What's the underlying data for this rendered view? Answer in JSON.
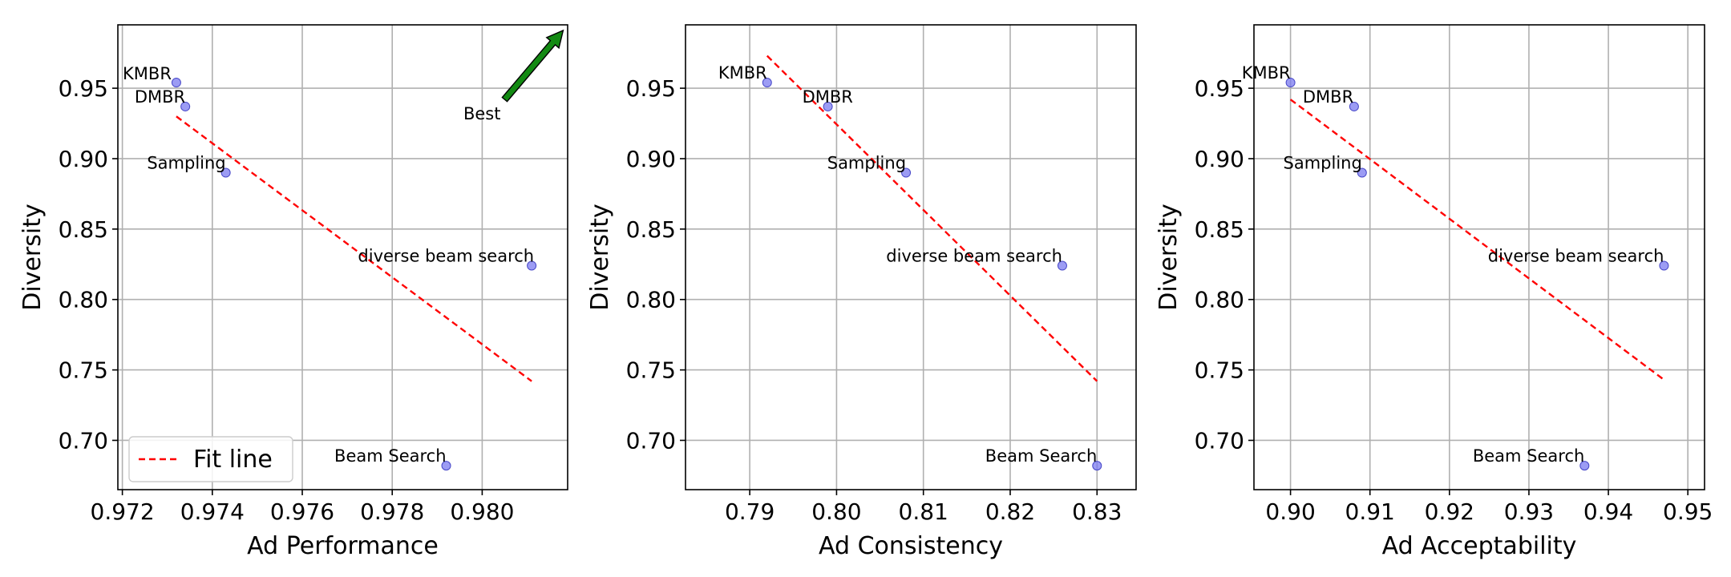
{
  "chart_data": [
    {
      "type": "scatter",
      "title": "",
      "xlabel": "Ad Performance",
      "ylabel": "Diversity",
      "xlim": [
        0.9719,
        0.9819
      ],
      "ylim": [
        0.665,
        0.995
      ],
      "xticks": [
        {
          "value": 0.972,
          "label": "0.972"
        },
        {
          "value": 0.974,
          "label": "0.974"
        },
        {
          "value": 0.976,
          "label": "0.976"
        },
        {
          "value": 0.978,
          "label": "0.978"
        },
        {
          "value": 0.98,
          "label": "0.980"
        }
      ],
      "yticks": [
        {
          "value": 0.7,
          "label": "0.70"
        },
        {
          "value": 0.75,
          "label": "0.75"
        },
        {
          "value": 0.8,
          "label": "0.80"
        },
        {
          "value": 0.85,
          "label": "0.85"
        },
        {
          "value": 0.9,
          "label": "0.90"
        },
        {
          "value": 0.95,
          "label": "0.95"
        }
      ],
      "grid": true,
      "points": [
        {
          "label": "KMBR",
          "x": 0.9732,
          "y": 0.954
        },
        {
          "label": "DMBR",
          "x": 0.9734,
          "y": 0.937
        },
        {
          "label": "Sampling",
          "x": 0.9743,
          "y": 0.89
        },
        {
          "label": "diverse beam search",
          "x": 0.9811,
          "y": 0.824
        },
        {
          "label": "Beam Search",
          "x": 0.9792,
          "y": 0.682
        }
      ],
      "fit_line": {
        "x": [
          0.9732,
          0.9811
        ],
        "y": [
          0.93,
          0.742
        ],
        "color": "#ff0000",
        "legend": "Fit line",
        "legend_position": "lower-left"
      },
      "annotation": {
        "text": "Best",
        "arrow_from": [
          0.9805,
          0.942
        ],
        "arrow_to": [
          0.9818,
          0.991
        ],
        "color": "#138a13"
      }
    },
    {
      "type": "scatter",
      "title": "",
      "xlabel": "Ad Consistency",
      "ylabel": "Diversity",
      "xlim": [
        0.7826,
        0.8345
      ],
      "ylim": [
        0.665,
        0.995
      ],
      "xticks": [
        {
          "value": 0.79,
          "label": "0.79"
        },
        {
          "value": 0.8,
          "label": "0.80"
        },
        {
          "value": 0.81,
          "label": "0.81"
        },
        {
          "value": 0.82,
          "label": "0.82"
        },
        {
          "value": 0.83,
          "label": "0.83"
        }
      ],
      "yticks": [
        {
          "value": 0.7,
          "label": "0.70"
        },
        {
          "value": 0.75,
          "label": "0.75"
        },
        {
          "value": 0.8,
          "label": "0.80"
        },
        {
          "value": 0.85,
          "label": "0.85"
        },
        {
          "value": 0.9,
          "label": "0.90"
        },
        {
          "value": 0.95,
          "label": "0.95"
        }
      ],
      "grid": true,
      "points": [
        {
          "label": "KMBR",
          "x": 0.792,
          "y": 0.954
        },
        {
          "label": "DMBR",
          "x": 0.799,
          "y": 0.937
        },
        {
          "label": "Sampling",
          "x": 0.808,
          "y": 0.89
        },
        {
          "label": "diverse beam search",
          "x": 0.826,
          "y": 0.824
        },
        {
          "label": "Beam Search",
          "x": 0.83,
          "y": 0.682
        }
      ],
      "fit_line": {
        "x": [
          0.792,
          0.83
        ],
        "y": [
          0.973,
          0.742
        ],
        "color": "#ff0000"
      }
    },
    {
      "type": "scatter",
      "title": "",
      "xlabel": "Ad Acceptability",
      "ylabel": "Diversity",
      "xlim": [
        0.8954,
        0.9521
      ],
      "ylim": [
        0.665,
        0.995
      ],
      "xticks": [
        {
          "value": 0.9,
          "label": "0.90"
        },
        {
          "value": 0.91,
          "label": "0.91"
        },
        {
          "value": 0.92,
          "label": "0.92"
        },
        {
          "value": 0.93,
          "label": "0.93"
        },
        {
          "value": 0.94,
          "label": "0.94"
        },
        {
          "value": 0.95,
          "label": "0.95"
        }
      ],
      "yticks": [
        {
          "value": 0.7,
          "label": "0.70"
        },
        {
          "value": 0.75,
          "label": "0.75"
        },
        {
          "value": 0.8,
          "label": "0.80"
        },
        {
          "value": 0.85,
          "label": "0.85"
        },
        {
          "value": 0.9,
          "label": "0.90"
        },
        {
          "value": 0.95,
          "label": "0.95"
        }
      ],
      "grid": true,
      "points": [
        {
          "label": "KMBR",
          "x": 0.9,
          "y": 0.954
        },
        {
          "label": "DMBR",
          "x": 0.908,
          "y": 0.937
        },
        {
          "label": "Sampling",
          "x": 0.909,
          "y": 0.89
        },
        {
          "label": "diverse beam search",
          "x": 0.947,
          "y": 0.824
        },
        {
          "label": "Beam Search",
          "x": 0.937,
          "y": 0.682
        }
      ],
      "fit_line": {
        "x": [
          0.9,
          0.947
        ],
        "y": [
          0.942,
          0.743
        ],
        "color": "#ff0000"
      }
    }
  ],
  "style": {
    "point_color": "#7b7bf0",
    "point_edge": "#4747c8",
    "fit_color": "#ff0000",
    "arrow_color": "#138a13"
  }
}
